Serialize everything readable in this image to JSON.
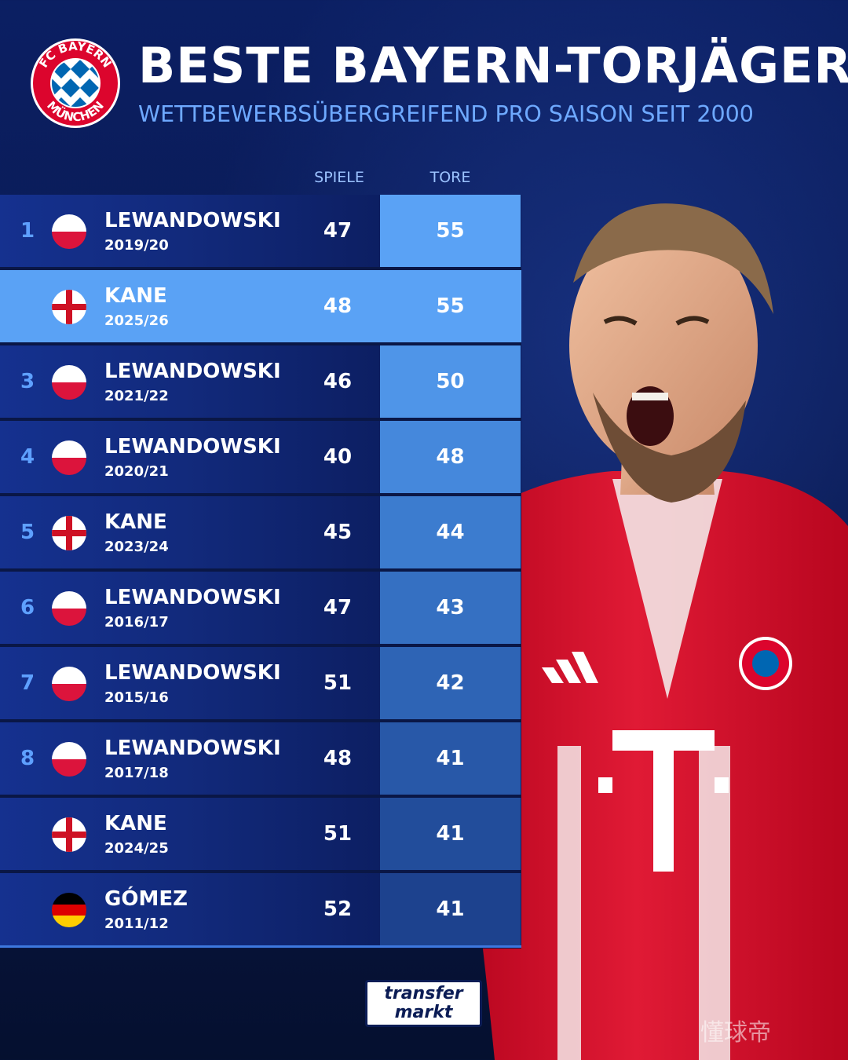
{
  "header": {
    "title": "BESTE BAYERN-TORJÄGER",
    "subtitle": "WETTBEWERBSÜBERGREIFEND PRO SAISON SEIT 2000",
    "logo_top_text": "FC BAYERN",
    "logo_bottom_text": "MÜNCHEN"
  },
  "table": {
    "columns": {
      "games": "SPIELE",
      "goals": "TORE"
    },
    "rows": [
      {
        "rank": "1",
        "flag": "poland",
        "name": "LEWANDOWSKI",
        "season": "2019/20",
        "games": "47",
        "goals": "55"
      },
      {
        "rank": "",
        "flag": "england",
        "name": "KANE",
        "season": "2025/26",
        "games": "48",
        "goals": "55"
      },
      {
        "rank": "3",
        "flag": "poland",
        "name": "LEWANDOWSKI",
        "season": "2021/22",
        "games": "46",
        "goals": "50"
      },
      {
        "rank": "4",
        "flag": "poland",
        "name": "LEWANDOWSKI",
        "season": "2020/21",
        "games": "40",
        "goals": "48"
      },
      {
        "rank": "5",
        "flag": "england",
        "name": "KANE",
        "season": "2023/24",
        "games": "45",
        "goals": "44"
      },
      {
        "rank": "6",
        "flag": "poland",
        "name": "LEWANDOWSKI",
        "season": "2016/17",
        "games": "47",
        "goals": "43"
      },
      {
        "rank": "7",
        "flag": "poland",
        "name": "LEWANDOWSKI",
        "season": "2015/16",
        "games": "51",
        "goals": "42"
      },
      {
        "rank": "8",
        "flag": "poland",
        "name": "LEWANDOWSKI",
        "season": "2017/18",
        "games": "48",
        "goals": "41"
      },
      {
        "rank": "",
        "flag": "england",
        "name": "KANE",
        "season": "2024/25",
        "games": "51",
        "goals": "41"
      },
      {
        "rank": "",
        "flag": "germany",
        "name": "GÓMEZ",
        "season": "2011/12",
        "games": "52",
        "goals": "41"
      }
    ]
  },
  "footer": {
    "brand_line1": "transfer",
    "brand_line2": "markt",
    "watermark": "懂球帝"
  },
  "colors": {
    "accent": "#6ea9ff",
    "highlight_row": "#5aa2f5",
    "bayern_red": "#dc052d",
    "bayern_blue": "#0066b2"
  }
}
